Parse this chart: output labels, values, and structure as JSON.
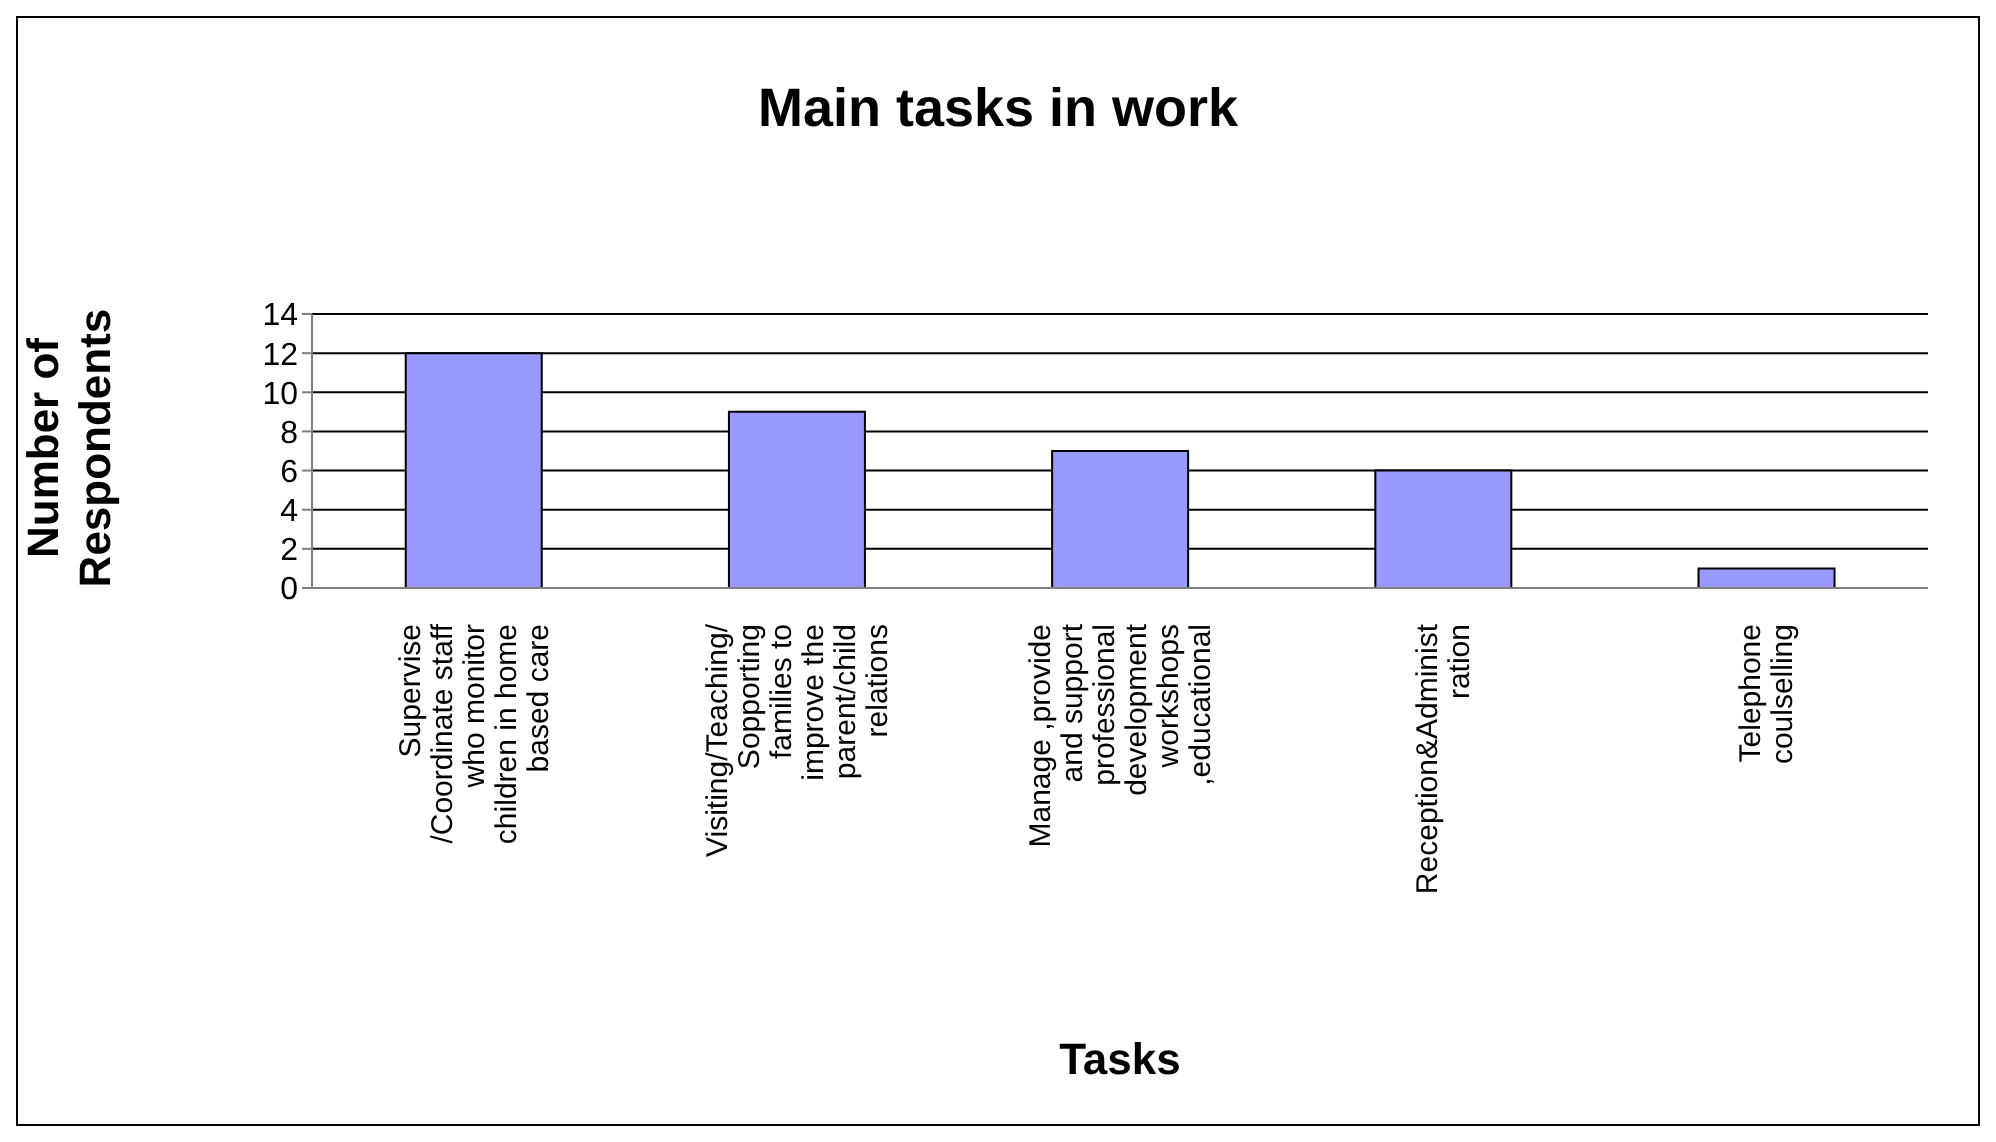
{
  "chart_data": {
    "type": "bar",
    "title": "Main tasks in work",
    "xlabel": "Tasks",
    "ylabel": "Number of Respondents",
    "categories": [
      "Supervise /Coordinate staff who monitor children in home based care",
      "Visiting/Teaching/ Sopporting families to improve the parent/child relations",
      "Manage ,provide and support professional development workshops ,educational",
      "Reception&Administration",
      "Telephone coulselling"
    ],
    "values": [
      12,
      9,
      7,
      6,
      1
    ],
    "color": "#9999ff",
    "ylim": [
      0,
      14
    ],
    "yticks": [
      0,
      2,
      4,
      6,
      8,
      10,
      12,
      14
    ],
    "grid": "y"
  }
}
